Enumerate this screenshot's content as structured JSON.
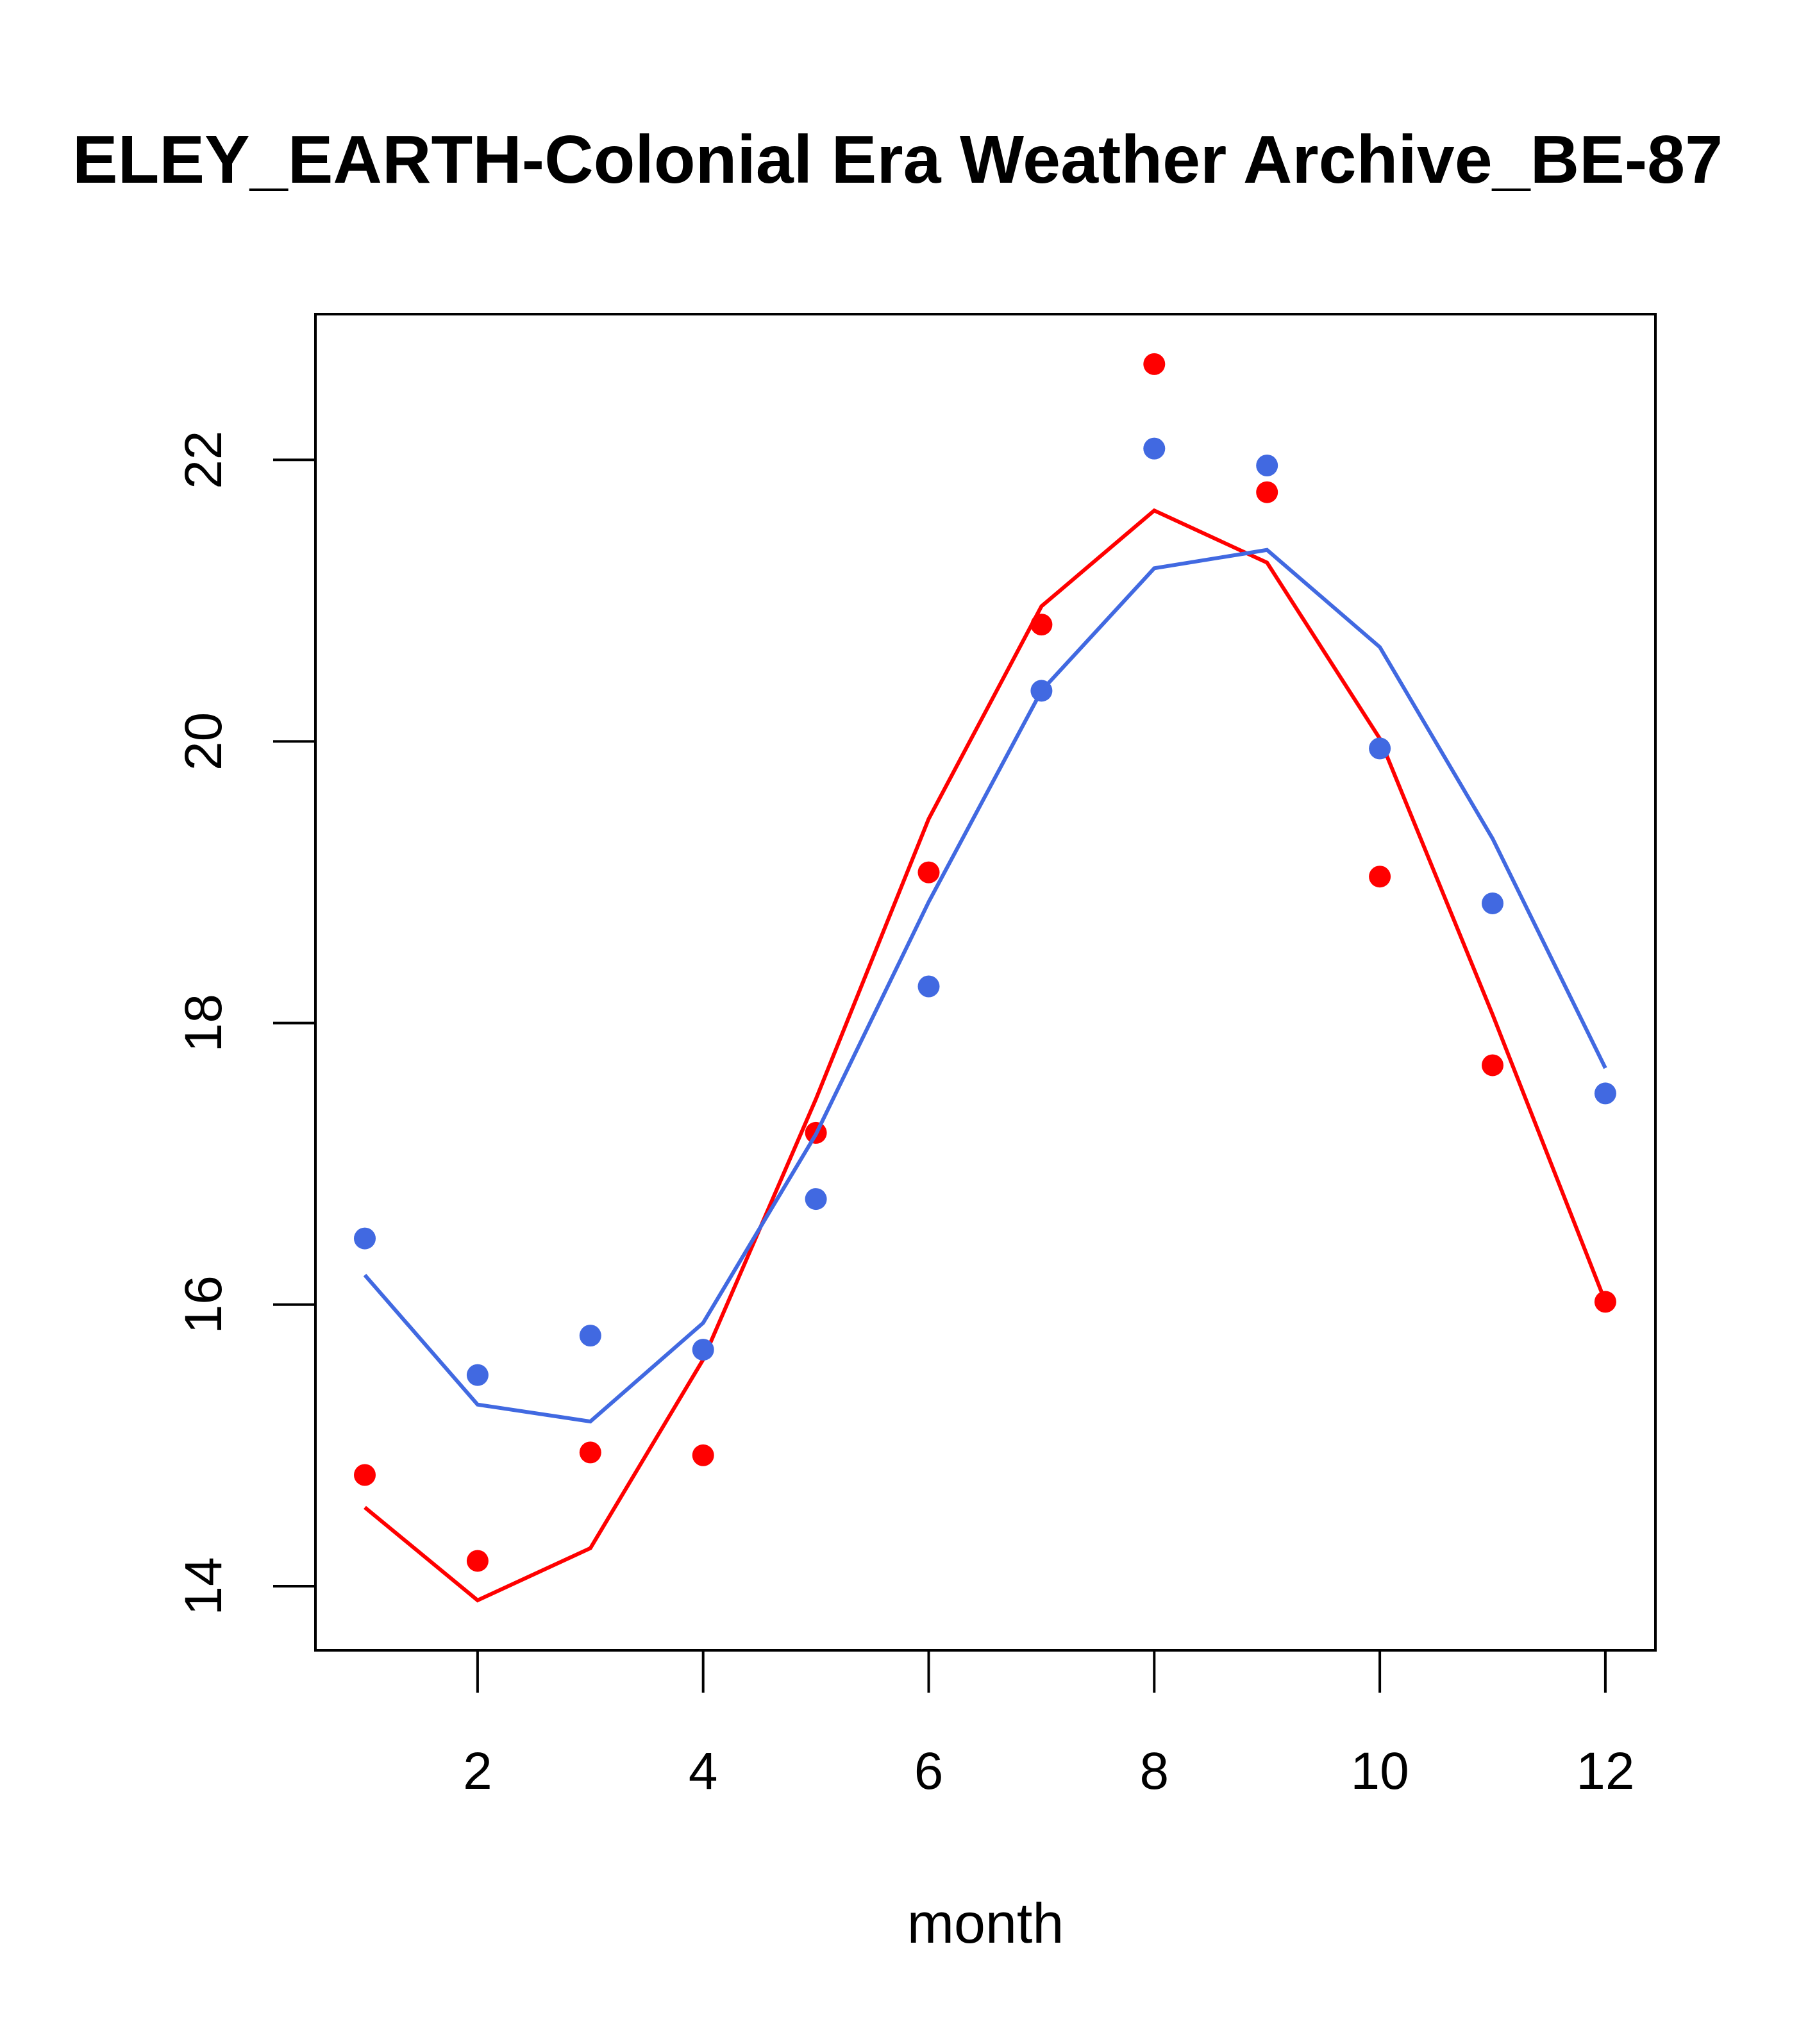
{
  "chart_data": {
    "type": "line",
    "title": "ELEY_EARTH-Colonial Era Weather Archive_BE-87",
    "xlabel": "month",
    "ylabel": "",
    "xlim": [
      0.55,
      12.45
    ],
    "ylim": [
      13.55,
      23.05
    ],
    "x_ticks": [
      2,
      4,
      6,
      8,
      10,
      12
    ],
    "y_ticks": [
      14,
      16,
      18,
      20,
      22
    ],
    "grid": false,
    "x": [
      1,
      2,
      3,
      4,
      5,
      6,
      7,
      8,
      9,
      10,
      11,
      12
    ],
    "series": [
      {
        "name": "red points",
        "style": "points",
        "color": "#ff0000",
        "values": [
          14.79,
          14.18,
          14.95,
          14.93,
          17.22,
          19.07,
          20.83,
          22.68,
          21.77,
          19.04,
          17.7,
          16.02
        ]
      },
      {
        "name": "red line",
        "style": "line",
        "color": "#ff0000",
        "values": [
          14.56,
          13.9,
          14.27,
          15.61,
          17.46,
          19.45,
          20.96,
          21.64,
          21.27,
          20.02,
          18.06,
          16.02
        ]
      },
      {
        "name": "blue points",
        "style": "points",
        "color": "#4169e1",
        "values": [
          16.47,
          15.5,
          15.78,
          15.68,
          16.75,
          18.26,
          20.36,
          22.08,
          21.96,
          19.95,
          18.85,
          17.5
        ]
      },
      {
        "name": "blue line",
        "style": "line",
        "color": "#4169e1",
        "values": [
          16.21,
          15.29,
          15.17,
          15.87,
          17.21,
          18.86,
          20.36,
          21.23,
          21.36,
          20.67,
          19.31,
          17.68
        ]
      }
    ]
  }
}
